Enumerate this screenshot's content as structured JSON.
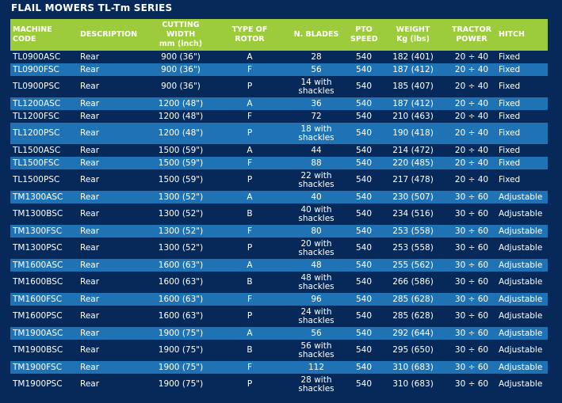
{
  "title": "FLAIL MOWERS TL-Tm SERIES",
  "colors": {
    "header_bg": "#9ccc3c",
    "row_dark": "#06295a",
    "row_light": "#1f73b4",
    "page_bg": "#06295a"
  },
  "columns": {
    "machine_code": "MACHINE CODE",
    "description": "DESCRIPTION",
    "cutting_width_1": "CUTTING",
    "cutting_width_2": "WIDTH",
    "cutting_width_3": "mm (inch)",
    "rotor_1": "TYPE OF",
    "rotor_2": "ROTOR",
    "blades": "N. BLADES",
    "pto_1": "PTO",
    "pto_2": "SPEED",
    "weight_1": "WEIGHT",
    "weight_2": "Kg (lbs)",
    "tractor_1": "TRACTOR",
    "tractor_2": "POWER",
    "hitch": "HITCH"
  },
  "rows": [
    {
      "code": "TL0900ASC",
      "desc": "Rear",
      "width": "900 (36\")",
      "rotor": "A",
      "blades_1": "28",
      "blades_2": "",
      "pto": "540",
      "weight": "182 (401)",
      "power": "20 ÷ 40",
      "hitch": "Fixed"
    },
    {
      "code": "TL0900FSC",
      "desc": "Rear",
      "width": "900 (36\")",
      "rotor": "F",
      "blades_1": "56",
      "blades_2": "",
      "pto": "540",
      "weight": "187 (412)",
      "power": "20 ÷ 40",
      "hitch": "Fixed"
    },
    {
      "code": "TL0900PSC",
      "desc": "Rear",
      "width": "900 (36\")",
      "rotor": "P",
      "blades_1": "14 with",
      "blades_2": "shackles",
      "pto": "540",
      "weight": "185 (407)",
      "power": "20 ÷ 40",
      "hitch": "Fixed"
    },
    {
      "code": "TL1200ASC",
      "desc": "Rear",
      "width": "1200 (48\")",
      "rotor": "A",
      "blades_1": "36",
      "blades_2": "",
      "pto": "540",
      "weight": "187 (412)",
      "power": "20 ÷ 40",
      "hitch": "Fixed"
    },
    {
      "code": "TL1200FSC",
      "desc": "Rear",
      "width": "1200 (48\")",
      "rotor": "F",
      "blades_1": "72",
      "blades_2": "",
      "pto": "540",
      "weight": "210 (463)",
      "power": "20 ÷ 40",
      "hitch": "Fixed"
    },
    {
      "code": "TL1200PSC",
      "desc": "Rear",
      "width": "1200 (48\")",
      "rotor": "P",
      "blades_1": "18 with",
      "blades_2": "shackles",
      "pto": "540",
      "weight": "190 (418)",
      "power": "20 ÷ 40",
      "hitch": "Fixed"
    },
    {
      "code": "TL1500ASC",
      "desc": "Rear",
      "width": "1500 (59\")",
      "rotor": "A",
      "blades_1": "44",
      "blades_2": "",
      "pto": "540",
      "weight": "214 (472)",
      "power": "20 ÷ 40",
      "hitch": "Fixed"
    },
    {
      "code": "TL1500FSC",
      "desc": "Rear",
      "width": "1500 (59\")",
      "rotor": "F",
      "blades_1": "88",
      "blades_2": "",
      "pto": "540",
      "weight": "220 (485)",
      "power": "20 ÷ 40",
      "hitch": "Fixed"
    },
    {
      "code": "TL1500PSC",
      "desc": "Rear",
      "width": "1500 (59\")",
      "rotor": "P",
      "blades_1": "22 with",
      "blades_2": "shackles",
      "pto": "540",
      "weight": "217 (478)",
      "power": "20 ÷ 40",
      "hitch": "Fixed"
    },
    {
      "code": "TM1300ASC",
      "desc": "Rear",
      "width": "1300 (52\")",
      "rotor": "A",
      "blades_1": "40",
      "blades_2": "",
      "pto": "540",
      "weight": "230 (507)",
      "power": "30 ÷ 60",
      "hitch": "Adjustable"
    },
    {
      "code": "TM1300BSC",
      "desc": "Rear",
      "width": "1300 (52\")",
      "rotor": "B",
      "blades_1": "40 with",
      "blades_2": "shackles",
      "pto": "540",
      "weight": "234 (516)",
      "power": "30 ÷ 60",
      "hitch": "Adjustable"
    },
    {
      "code": "TM1300FSC",
      "desc": "Rear",
      "width": "1300 (52\")",
      "rotor": "F",
      "blades_1": "80",
      "blades_2": "",
      "pto": "540",
      "weight": "253 (558)",
      "power": "30 ÷ 60",
      "hitch": "Adjustable"
    },
    {
      "code": "TM1300PSC",
      "desc": "Rear",
      "width": "1300 (52\")",
      "rotor": "P",
      "blades_1": "20 with",
      "blades_2": "shackles",
      "pto": "540",
      "weight": "253 (558)",
      "power": "30 ÷ 60",
      "hitch": "Adjustable"
    },
    {
      "code": "TM1600ASC",
      "desc": "Rear",
      "width": "1600 (63\")",
      "rotor": "A",
      "blades_1": "48",
      "blades_2": "",
      "pto": "540",
      "weight": "255 (562)",
      "power": "30 ÷ 60",
      "hitch": "Adjustable"
    },
    {
      "code": "TM1600BSC",
      "desc": "Rear",
      "width": "1600 (63\")",
      "rotor": "B",
      "blades_1": "48 with",
      "blades_2": "shackles",
      "pto": "540",
      "weight": "266 (586)",
      "power": "30 ÷ 60",
      "hitch": "Adjustable"
    },
    {
      "code": "TM1600FSC",
      "desc": "Rear",
      "width": "1600 (63\")",
      "rotor": "F",
      "blades_1": "96",
      "blades_2": "",
      "pto": "540",
      "weight": "285 (628)",
      "power": "30 ÷ 60",
      "hitch": "Adjustable"
    },
    {
      "code": "TM1600PSC",
      "desc": "Rear",
      "width": "1600 (63\")",
      "rotor": "P",
      "blades_1": "24 with",
      "blades_2": "shackles",
      "pto": "540",
      "weight": "285 (628)",
      "power": "30 ÷ 60",
      "hitch": "Adjustable"
    },
    {
      "code": "TM1900ASC",
      "desc": "Rear",
      "width": "1900 (75\")",
      "rotor": "A",
      "blades_1": "56",
      "blades_2": "",
      "pto": "540",
      "weight": "292 (644)",
      "power": "30 ÷ 60",
      "hitch": "Adjustable"
    },
    {
      "code": "TM1900BSC",
      "desc": "Rear",
      "width": "1900 (75\")",
      "rotor": "B",
      "blades_1": "56 with",
      "blades_2": "shackles",
      "pto": "540",
      "weight": "295 (650)",
      "power": "30 ÷ 60",
      "hitch": "Adjustable"
    },
    {
      "code": "TM1900FSC",
      "desc": "Rear",
      "width": "1900 (75\")",
      "rotor": "F",
      "blades_1": "112",
      "blades_2": "",
      "pto": "540",
      "weight": "310 (683)",
      "power": "30 ÷ 60",
      "hitch": "Adjustable"
    },
    {
      "code": "TM1900PSC",
      "desc": "Rear",
      "width": "1900 (75\")",
      "rotor": "P",
      "blades_1": "28 with",
      "blades_2": "shackles",
      "pto": "540",
      "weight": "310 (683)",
      "power": "30 ÷ 60",
      "hitch": "Adjustable"
    }
  ]
}
